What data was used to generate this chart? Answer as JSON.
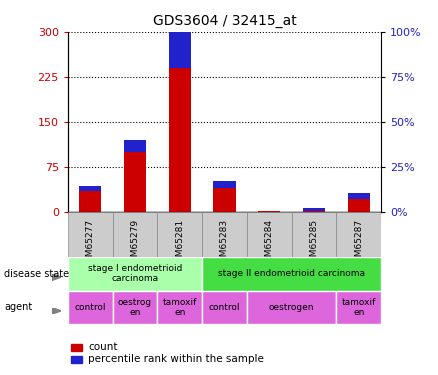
{
  "title": "GDS3604 / 32415_at",
  "samples": [
    "GSM65277",
    "GSM65279",
    "GSM65281",
    "GSM65283",
    "GSM65284",
    "GSM65285",
    "GSM65287"
  ],
  "count_values": [
    35,
    100,
    240,
    40,
    1,
    1,
    22
  ],
  "percentile_values": [
    8,
    20,
    65,
    12,
    1,
    5,
    10
  ],
  "ylim_left": [
    0,
    300
  ],
  "ylim_right": [
    0,
    100
  ],
  "yticks_left": [
    0,
    75,
    150,
    225,
    300
  ],
  "yticks_right": [
    0,
    25,
    50,
    75,
    100
  ],
  "count_color": "#cc0000",
  "percentile_color": "#2222cc",
  "disease_state_groups": [
    {
      "label": "stage I endometrioid\ncarcinoma",
      "start": 0,
      "end": 3,
      "color": "#aaffaa"
    },
    {
      "label": "stage II endometrioid carcinoma",
      "start": 3,
      "end": 7,
      "color": "#44dd44"
    }
  ],
  "agent_groups": [
    {
      "label": "control",
      "start": 0,
      "end": 1,
      "color": "#dd66dd"
    },
    {
      "label": "oestrog\nen",
      "start": 1,
      "end": 2,
      "color": "#dd66dd"
    },
    {
      "label": "tamoxif\nen",
      "start": 2,
      "end": 3,
      "color": "#dd66dd"
    },
    {
      "label": "control",
      "start": 3,
      "end": 4,
      "color": "#dd66dd"
    },
    {
      "label": "oestrogen",
      "start": 4,
      "end": 6,
      "color": "#dd66dd"
    },
    {
      "label": "tamoxif\nen",
      "start": 6,
      "end": 7,
      "color": "#dd66dd"
    }
  ],
  "bg_color": "#ffffff",
  "left_label_color": "#cc0000",
  "right_label_color": "#2222cc",
  "sample_box_color": "#cccccc",
  "border_color": "#888888"
}
